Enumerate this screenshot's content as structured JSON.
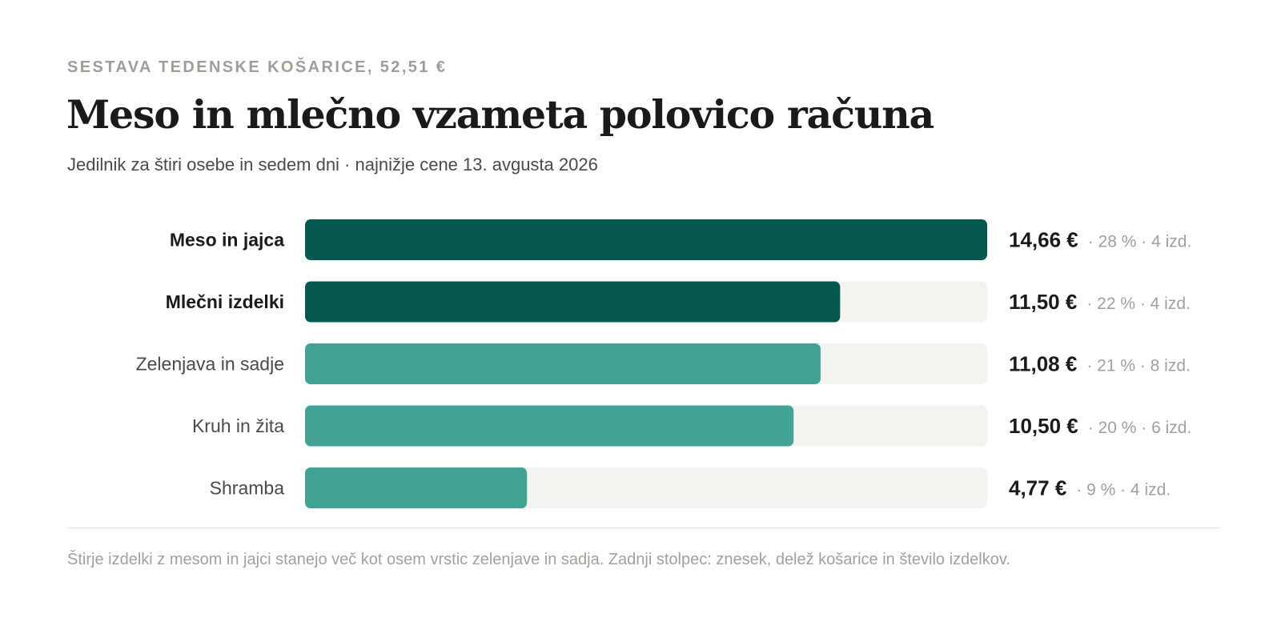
{
  "header": {
    "kicker": "SESTAVA TEDENSKE KOŠARICE, 52,51 €",
    "title": "Meso in mlečno vzameta polovico računa",
    "subtitle": "Jedilnik za štiri osebe in sedem dni · najnižje cene 13. avgusta 2026"
  },
  "chart_data": {
    "type": "bar",
    "orientation": "horizontal",
    "categories": [
      "Meso in jajca",
      "Mlečni izdelki",
      "Zelenjava in sadje",
      "Kruh in žita",
      "Shramba"
    ],
    "values": [
      14.66,
      11.5,
      11.08,
      10.5,
      4.77
    ],
    "value_labels": [
      "14,66 €",
      "11,50 €",
      "11,08 €",
      "10,50 €",
      "4,77 €"
    ],
    "detail_labels": [
      "· 28 % · 4 izd.",
      "· 22 % · 4 izd.",
      "· 21 % · 8 izd.",
      "· 20 % · 6 izd.",
      "· 9 % · 4 izd."
    ],
    "shares_percent": [
      28,
      22,
      21,
      20,
      9
    ],
    "item_counts": [
      4,
      4,
      8,
      6,
      4
    ],
    "highlighted": [
      true,
      true,
      false,
      false,
      false
    ],
    "xlim": [
      0,
      14.66
    ],
    "grid": false,
    "colors": {
      "highlight": "#05594f",
      "normal": "#41a393",
      "track": "#f4f3ef",
      "label_strong": "#1a1a1a",
      "label_normal": "#4a4a4a",
      "detail": "#a3a09a"
    }
  },
  "footer": {
    "note": "Štirje izdelki z mesom in jajci stanejo več kot osem vrstic zelenjave in sadja. Zadnji stolpec: znesek, delež košarice in število izdelkov."
  }
}
